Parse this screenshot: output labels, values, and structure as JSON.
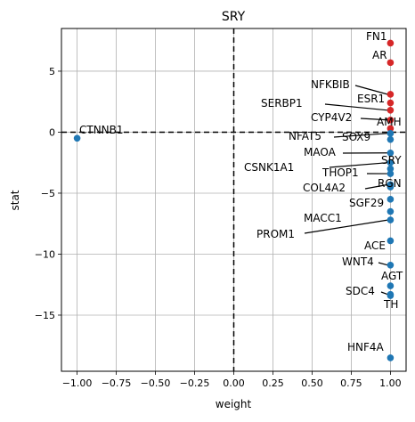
{
  "chart_data": {
    "type": "scatter",
    "title": "SRY",
    "xlabel": "weight",
    "ylabel": "stat",
    "xlim": [
      -1.1,
      1.1
    ],
    "ylim": [
      -19.6,
      8.5
    ],
    "x_ticks": [
      -1.0,
      -0.75,
      -0.5,
      -0.25,
      0.0,
      0.25,
      0.5,
      0.75,
      1.0
    ],
    "x_tick_labels": [
      "−1.00",
      "−0.75",
      "−0.50",
      "−0.25",
      "0.00",
      "0.25",
      "0.50",
      "0.75",
      "1.00"
    ],
    "y_ticks": [
      5,
      0,
      -5,
      -10,
      -15
    ],
    "y_tick_labels": [
      "5",
      "0",
      "−5",
      "−10",
      "−15"
    ],
    "grid": true,
    "reference_lines": {
      "x": 0,
      "y": 0
    },
    "colors": {
      "positive": "#d62728",
      "negative": "#1f77b4"
    },
    "points": [
      {
        "label": "FN1",
        "x": 1.0,
        "y": 7.3
      },
      {
        "label": "AR",
        "x": 1.0,
        "y": 5.7
      },
      {
        "label": "NFKBIB",
        "x": 1.0,
        "y": 3.1
      },
      {
        "label": "ESR1",
        "x": 1.0,
        "y": 2.4
      },
      {
        "label": "SERBP1",
        "x": 1.0,
        "y": 1.8
      },
      {
        "label": "CYP4V2",
        "x": 1.0,
        "y": 1.0
      },
      {
        "label": "AMH",
        "x": 1.0,
        "y": 0.3
      },
      {
        "label": "CTNNB1",
        "x": -1.0,
        "y": -0.5
      },
      {
        "label": "NFAT5",
        "x": 1.0,
        "y": -0.1
      },
      {
        "label": "SOX9",
        "x": 1.0,
        "y": -0.6
      },
      {
        "label": "MAOA",
        "x": 1.0,
        "y": -1.7
      },
      {
        "label": "CSNK1A1",
        "x": 1.0,
        "y": -2.5
      },
      {
        "label": "SRY",
        "x": 1.0,
        "y": -3.0
      },
      {
        "label": "THOP1",
        "x": 1.0,
        "y": -3.4
      },
      {
        "label": "COL4A2",
        "x": 1.0,
        "y": -4.3
      },
      {
        "label": "RGN",
        "x": 1.0,
        "y": -4.5
      },
      {
        "label": "SGF29",
        "x": 1.0,
        "y": -5.5
      },
      {
        "label": "MACC1",
        "x": 1.0,
        "y": -6.5
      },
      {
        "label": "PROM1",
        "x": 1.0,
        "y": -7.2
      },
      {
        "label": "ACE",
        "x": 1.0,
        "y": -8.9
      },
      {
        "label": "WNT4",
        "x": 1.0,
        "y": -10.9
      },
      {
        "label": "AGT",
        "x": 1.0,
        "y": -12.6
      },
      {
        "label": "SDC4",
        "x": 1.0,
        "y": -13.3
      },
      {
        "label": "TH",
        "x": 1.0,
        "y": -13.4
      },
      {
        "label": "HNF4A",
        "x": 1.0,
        "y": -18.5
      }
    ]
  }
}
